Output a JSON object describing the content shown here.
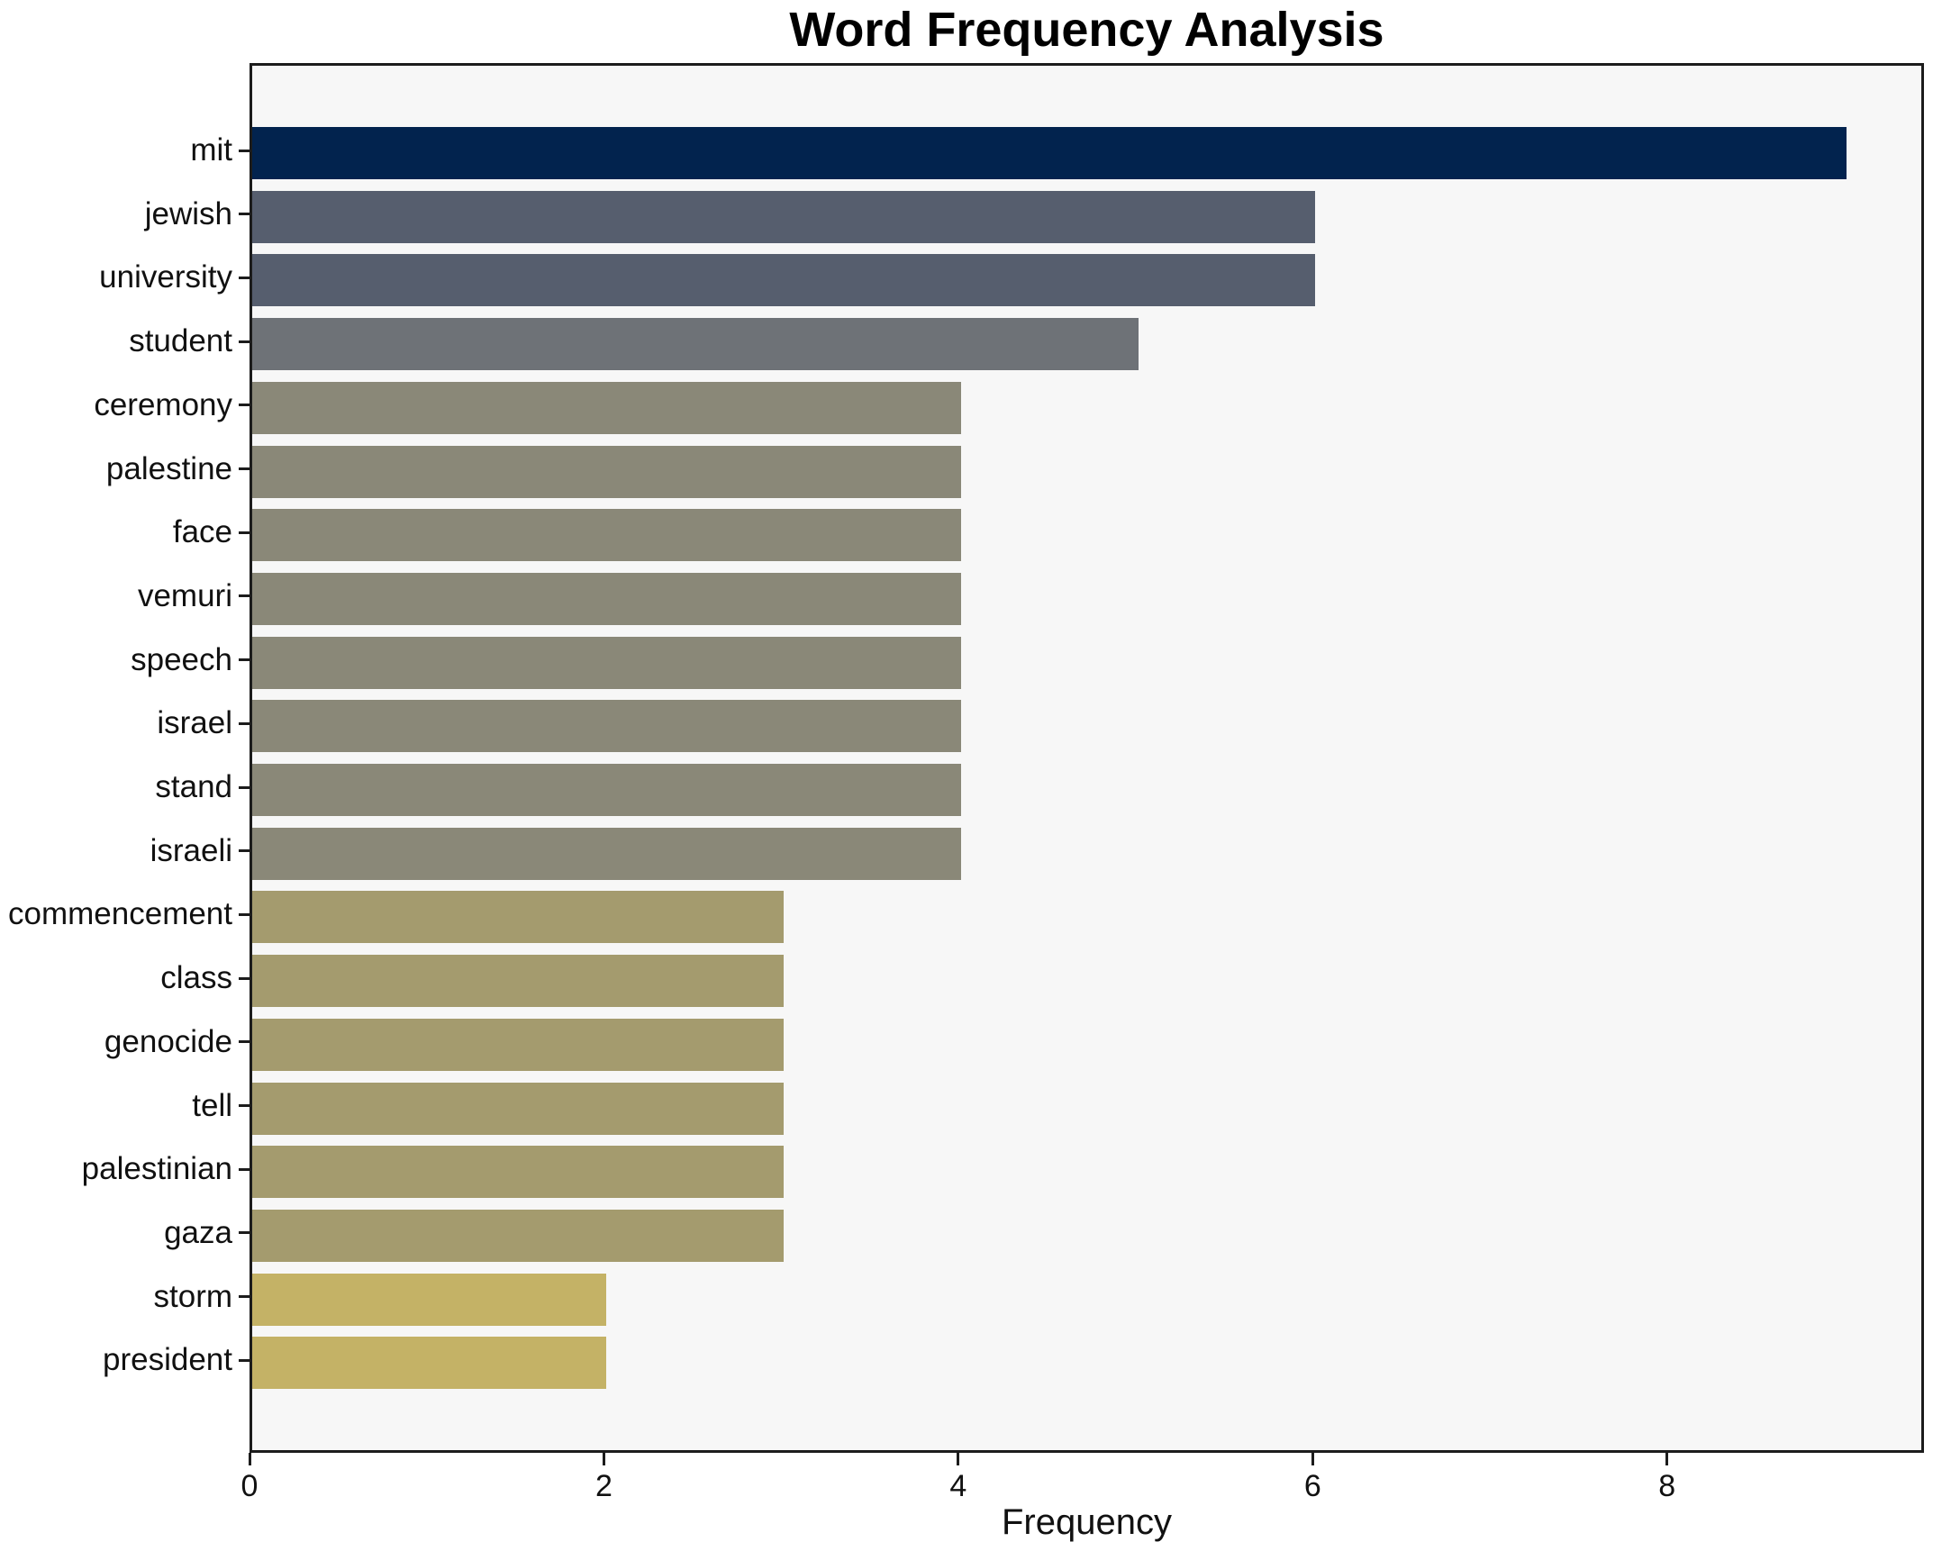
{
  "chart_data": {
    "type": "bar",
    "orientation": "horizontal",
    "title": "Word Frequency Analysis",
    "xlabel": "Frequency",
    "ylabel": "",
    "categories": [
      "mit",
      "jewish",
      "university",
      "student",
      "ceremony",
      "palestine",
      "face",
      "vemuri",
      "speech",
      "israel",
      "stand",
      "israeli",
      "commencement",
      "class",
      "genocide",
      "tell",
      "palestinian",
      "gaza",
      "storm",
      "president"
    ],
    "values": [
      9,
      6,
      6,
      5,
      4,
      4,
      4,
      4,
      4,
      4,
      4,
      4,
      3,
      3,
      3,
      3,
      3,
      3,
      2,
      2
    ],
    "bar_colors": [
      "#02234e",
      "#565e6e",
      "#565e6e",
      "#6e7277",
      "#8a8878",
      "#8a8878",
      "#8a8878",
      "#8a8878",
      "#8a8878",
      "#8a8878",
      "#8a8878",
      "#8a8878",
      "#a49b6e",
      "#a49b6e",
      "#a49b6e",
      "#a49b6e",
      "#a49b6e",
      "#a49b6e",
      "#c4b266",
      "#c4b266"
    ],
    "xticks": [
      0,
      2,
      4,
      6,
      8
    ],
    "xlim": [
      0,
      9.45
    ],
    "grid": false,
    "legend_position": "none",
    "colors": {
      "figure_background": "#ffffff",
      "plot_background": "#f7f7f7",
      "spine": "#1c1c1c",
      "text": "#111111"
    }
  }
}
